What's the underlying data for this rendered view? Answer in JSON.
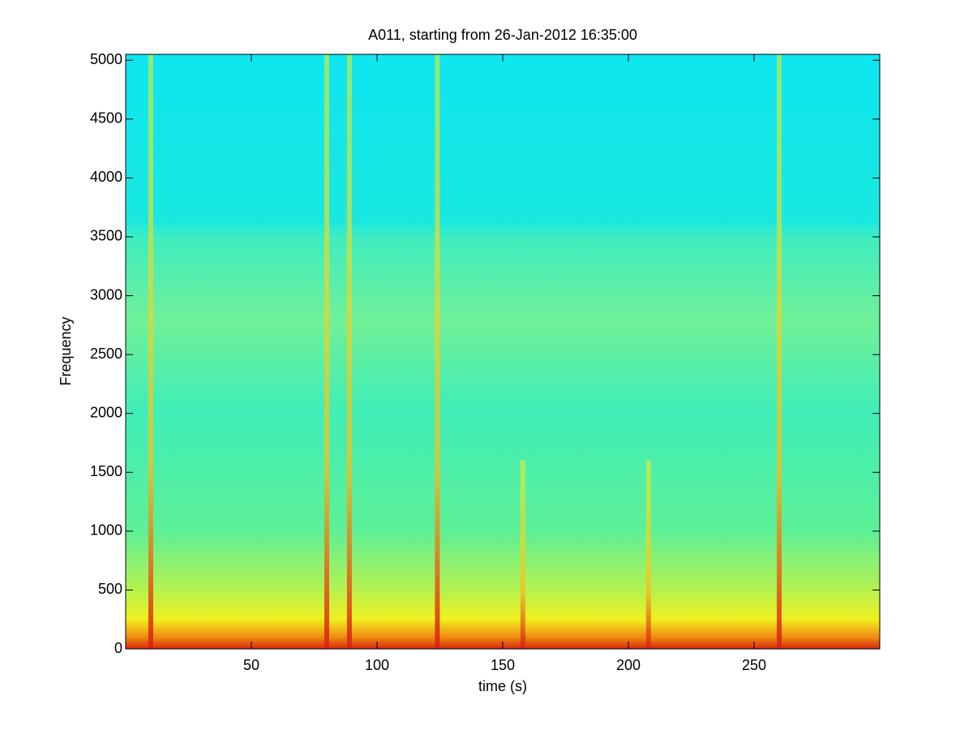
{
  "chart_data": {
    "type": "spectrogram",
    "title": "A011, starting from 26-Jan-2012 16:35:00",
    "x_label": "time (s)",
    "y_label": "Frequency",
    "x": [
      10,
      80,
      89,
      124,
      158,
      208,
      260
    ],
    "values": [
      5050,
      5050,
      5050,
      5050,
      1600,
      1600,
      5050
    ],
    "color": "#f0f020",
    "xlim": [
      0,
      300
    ],
    "ylim": [
      0,
      5050
    ],
    "xticks": [
      50,
      100,
      150,
      200,
      250
    ],
    "yticks": [
      0,
      500,
      1000,
      1500,
      2000,
      2500,
      3000,
      3500,
      4000,
      4500,
      5000
    ]
  }
}
